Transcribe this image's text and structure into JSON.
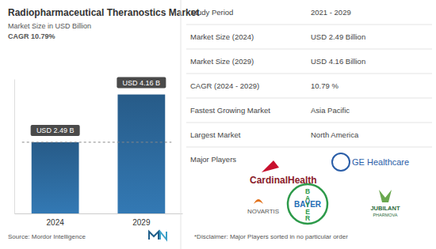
{
  "chart_data": {
    "type": "bar",
    "title": "Radiopharmaceutical Theranostics Market",
    "subtitle": "Market Size in USD Billion",
    "annotation": "CAGR 10.79%",
    "categories": [
      "2024",
      "2029"
    ],
    "values": [
      2.49,
      4.16
    ],
    "value_labels": [
      "USD 2.49 B",
      "USD 4.16 B"
    ],
    "data_labels": true,
    "color": "#2b6597",
    "ylim": [
      0,
      4.7
    ],
    "tick_labels": "x",
    "grid": false,
    "reference_line": 2.49,
    "source": "Source: Mordor Intelligence"
  },
  "panel": {
    "rows": [
      [
        "Study Period",
        "2021 - 2029"
      ],
      [
        "Market Size (2024)",
        "USD 2.49 Billion"
      ],
      [
        "Market Size (2029)",
        "USD 4.16 Billion"
      ],
      [
        "CAGR (2024 - 2029)",
        "10.79 %"
      ],
      [
        "Fastest Growing Market",
        "Asia Pacific"
      ],
      [
        "Largest Market",
        "North America"
      ]
    ],
    "players_title": "Major Players",
    "players": [
      "CardinalHealth",
      "GE Healthcare",
      "NOVARTIS",
      "BAYER",
      "JUBILANT",
      "PHARMOVA"
    ],
    "disclaimer": "*Disclaimer: Major Players sorted in no particular order"
  }
}
